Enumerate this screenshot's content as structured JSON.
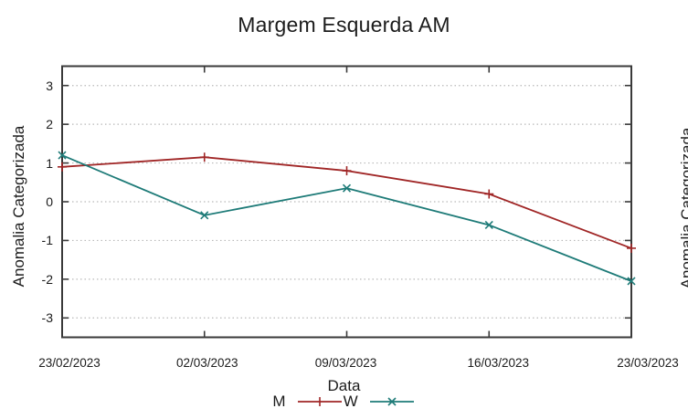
{
  "title": "Margem Esquerda AM",
  "colors": {
    "frame": "#3a3a3a",
    "grid": "#b9b9b9",
    "text": "#1c1c1c",
    "series_m_red": "#a02626",
    "series_w_teal": "#1e7b78"
  },
  "chart_data": {
    "type": "line",
    "title": "Margem Esquerda AM",
    "xlabel": "Data",
    "ylabel": "Anomalia Categorizada",
    "x": [
      "23/02/2023",
      "02/03/2023",
      "09/03/2023",
      "16/03/2023",
      "23/03/2023"
    ],
    "yticks": [
      3,
      2,
      1,
      0,
      -1,
      -2,
      -3
    ],
    "ylim": [
      -3.5,
      3.5
    ],
    "grid": "horizontal-dotted",
    "legend_position": "below-xlabel",
    "series": [
      {
        "name": "M",
        "color": "#a02626",
        "marker": "plus",
        "values": [
          0.9,
          1.15,
          0.8,
          0.2,
          -1.2
        ]
      },
      {
        "name": "W",
        "color": "#1e7b78",
        "marker": "cross",
        "values": [
          1.2,
          -0.35,
          0.35,
          -0.6,
          -2.05
        ]
      }
    ]
  },
  "adjacent_chart_clipped": {
    "ylabel": "Anomalia Categorizada"
  }
}
